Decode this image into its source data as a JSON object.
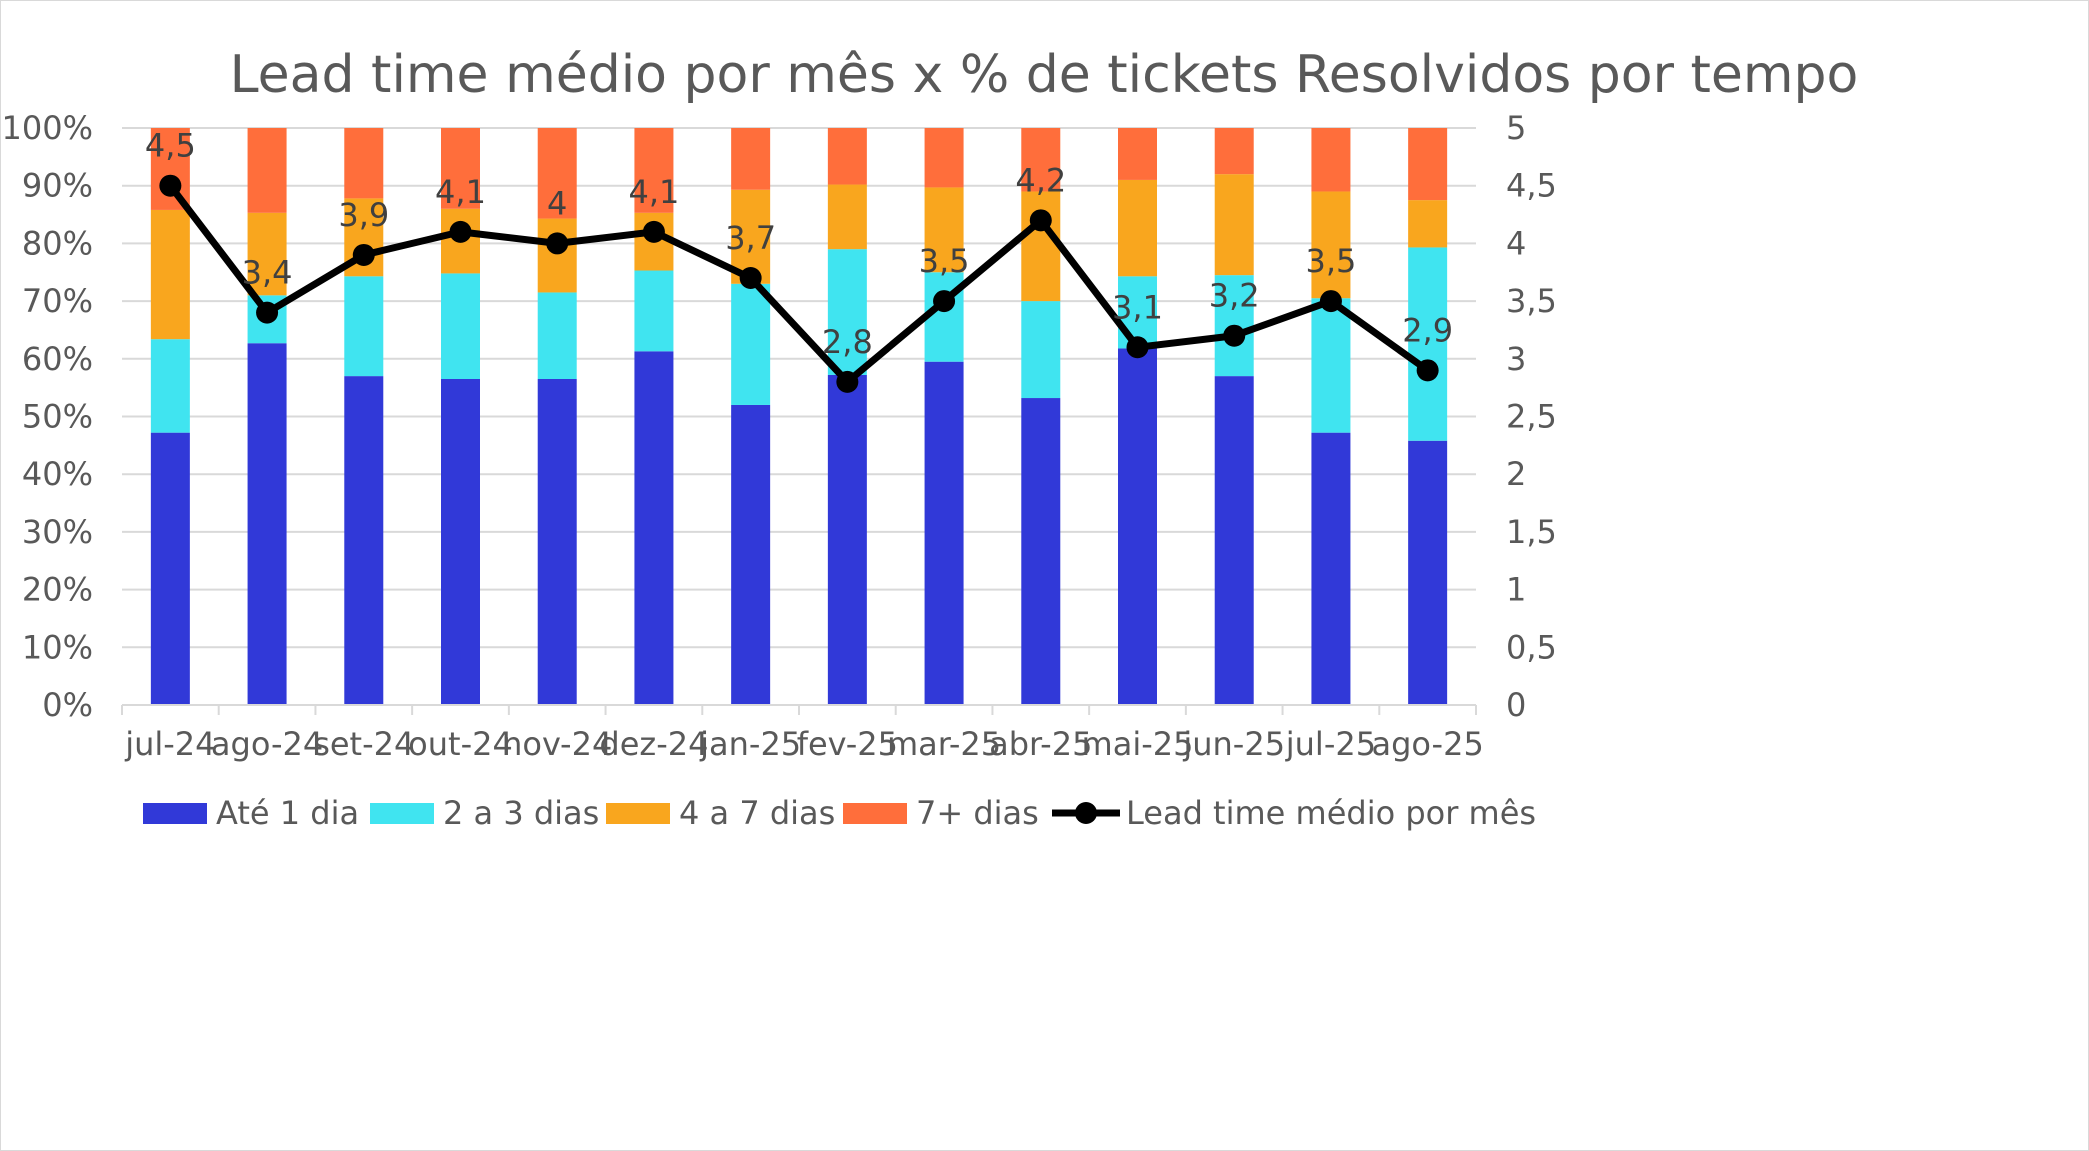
{
  "chart_data": {
    "type": "bar",
    "title": "Lead time médio por mês x % de tickets Resolvidos por tempo",
    "stacked": true,
    "categories": [
      "jul-24",
      "ago-24",
      "set-24",
      "out-24",
      "nov-24",
      "dez-24",
      "jan-25",
      "fev-25",
      "mar-25",
      "abr-25",
      "mai-25",
      "jun-25",
      "jul-25",
      "ago-25"
    ],
    "ylim": [
      0,
      1
    ],
    "yticks": [
      "0%",
      "10%",
      "20%",
      "30%",
      "40%",
      "50%",
      "60%",
      "70%",
      "80%",
      "90%",
      "100%"
    ],
    "y2lim": [
      0,
      5
    ],
    "y2ticks": [
      "0",
      "0,5",
      "1",
      "1,5",
      "2",
      "2,5",
      "3",
      "3,5",
      "4",
      "4,5",
      "5"
    ],
    "grid": true,
    "legend_position": "bottom",
    "series": [
      {
        "name": "Até 1 dia",
        "color": "#3139d8",
        "values": [
          0.472,
          0.627,
          0.57,
          0.565,
          0.565,
          0.613,
          0.52,
          0.572,
          0.595,
          0.532,
          0.618,
          0.57,
          0.472,
          0.458
        ]
      },
      {
        "name": "2 a 3 dias",
        "color": "#40e4f0",
        "values": [
          0.162,
          0.083,
          0.173,
          0.183,
          0.15,
          0.14,
          0.21,
          0.218,
          0.155,
          0.168,
          0.125,
          0.175,
          0.233,
          0.335
        ]
      },
      {
        "name": "4 a 7 dias",
        "color": "#f9a61e",
        "values": [
          0.224,
          0.143,
          0.135,
          0.112,
          0.128,
          0.1,
          0.163,
          0.112,
          0.147,
          0.19,
          0.167,
          0.175,
          0.185,
          0.082
        ]
      },
      {
        "name": "7+ dias",
        "color": "#ff6e3b",
        "values": [
          0.142,
          0.147,
          0.122,
          0.14,
          0.157,
          0.147,
          0.107,
          0.098,
          0.103,
          0.11,
          0.09,
          0.08,
          0.11,
          0.125
        ]
      }
    ],
    "line": {
      "name": "Lead time médio por mês",
      "color": "#000000",
      "axis": "secondary",
      "values": [
        4.5,
        3.4,
        3.9,
        4.1,
        4.0,
        4.1,
        3.7,
        2.8,
        3.5,
        4.2,
        3.1,
        3.2,
        3.5,
        2.9
      ],
      "labels": [
        "4,5",
        "3,4",
        "3,9",
        "4,1",
        "4",
        "4,1",
        "3,7",
        "2,8",
        "3,5",
        "4,2",
        "3,1",
        "3,2",
        "3,5",
        "2,9"
      ]
    }
  }
}
